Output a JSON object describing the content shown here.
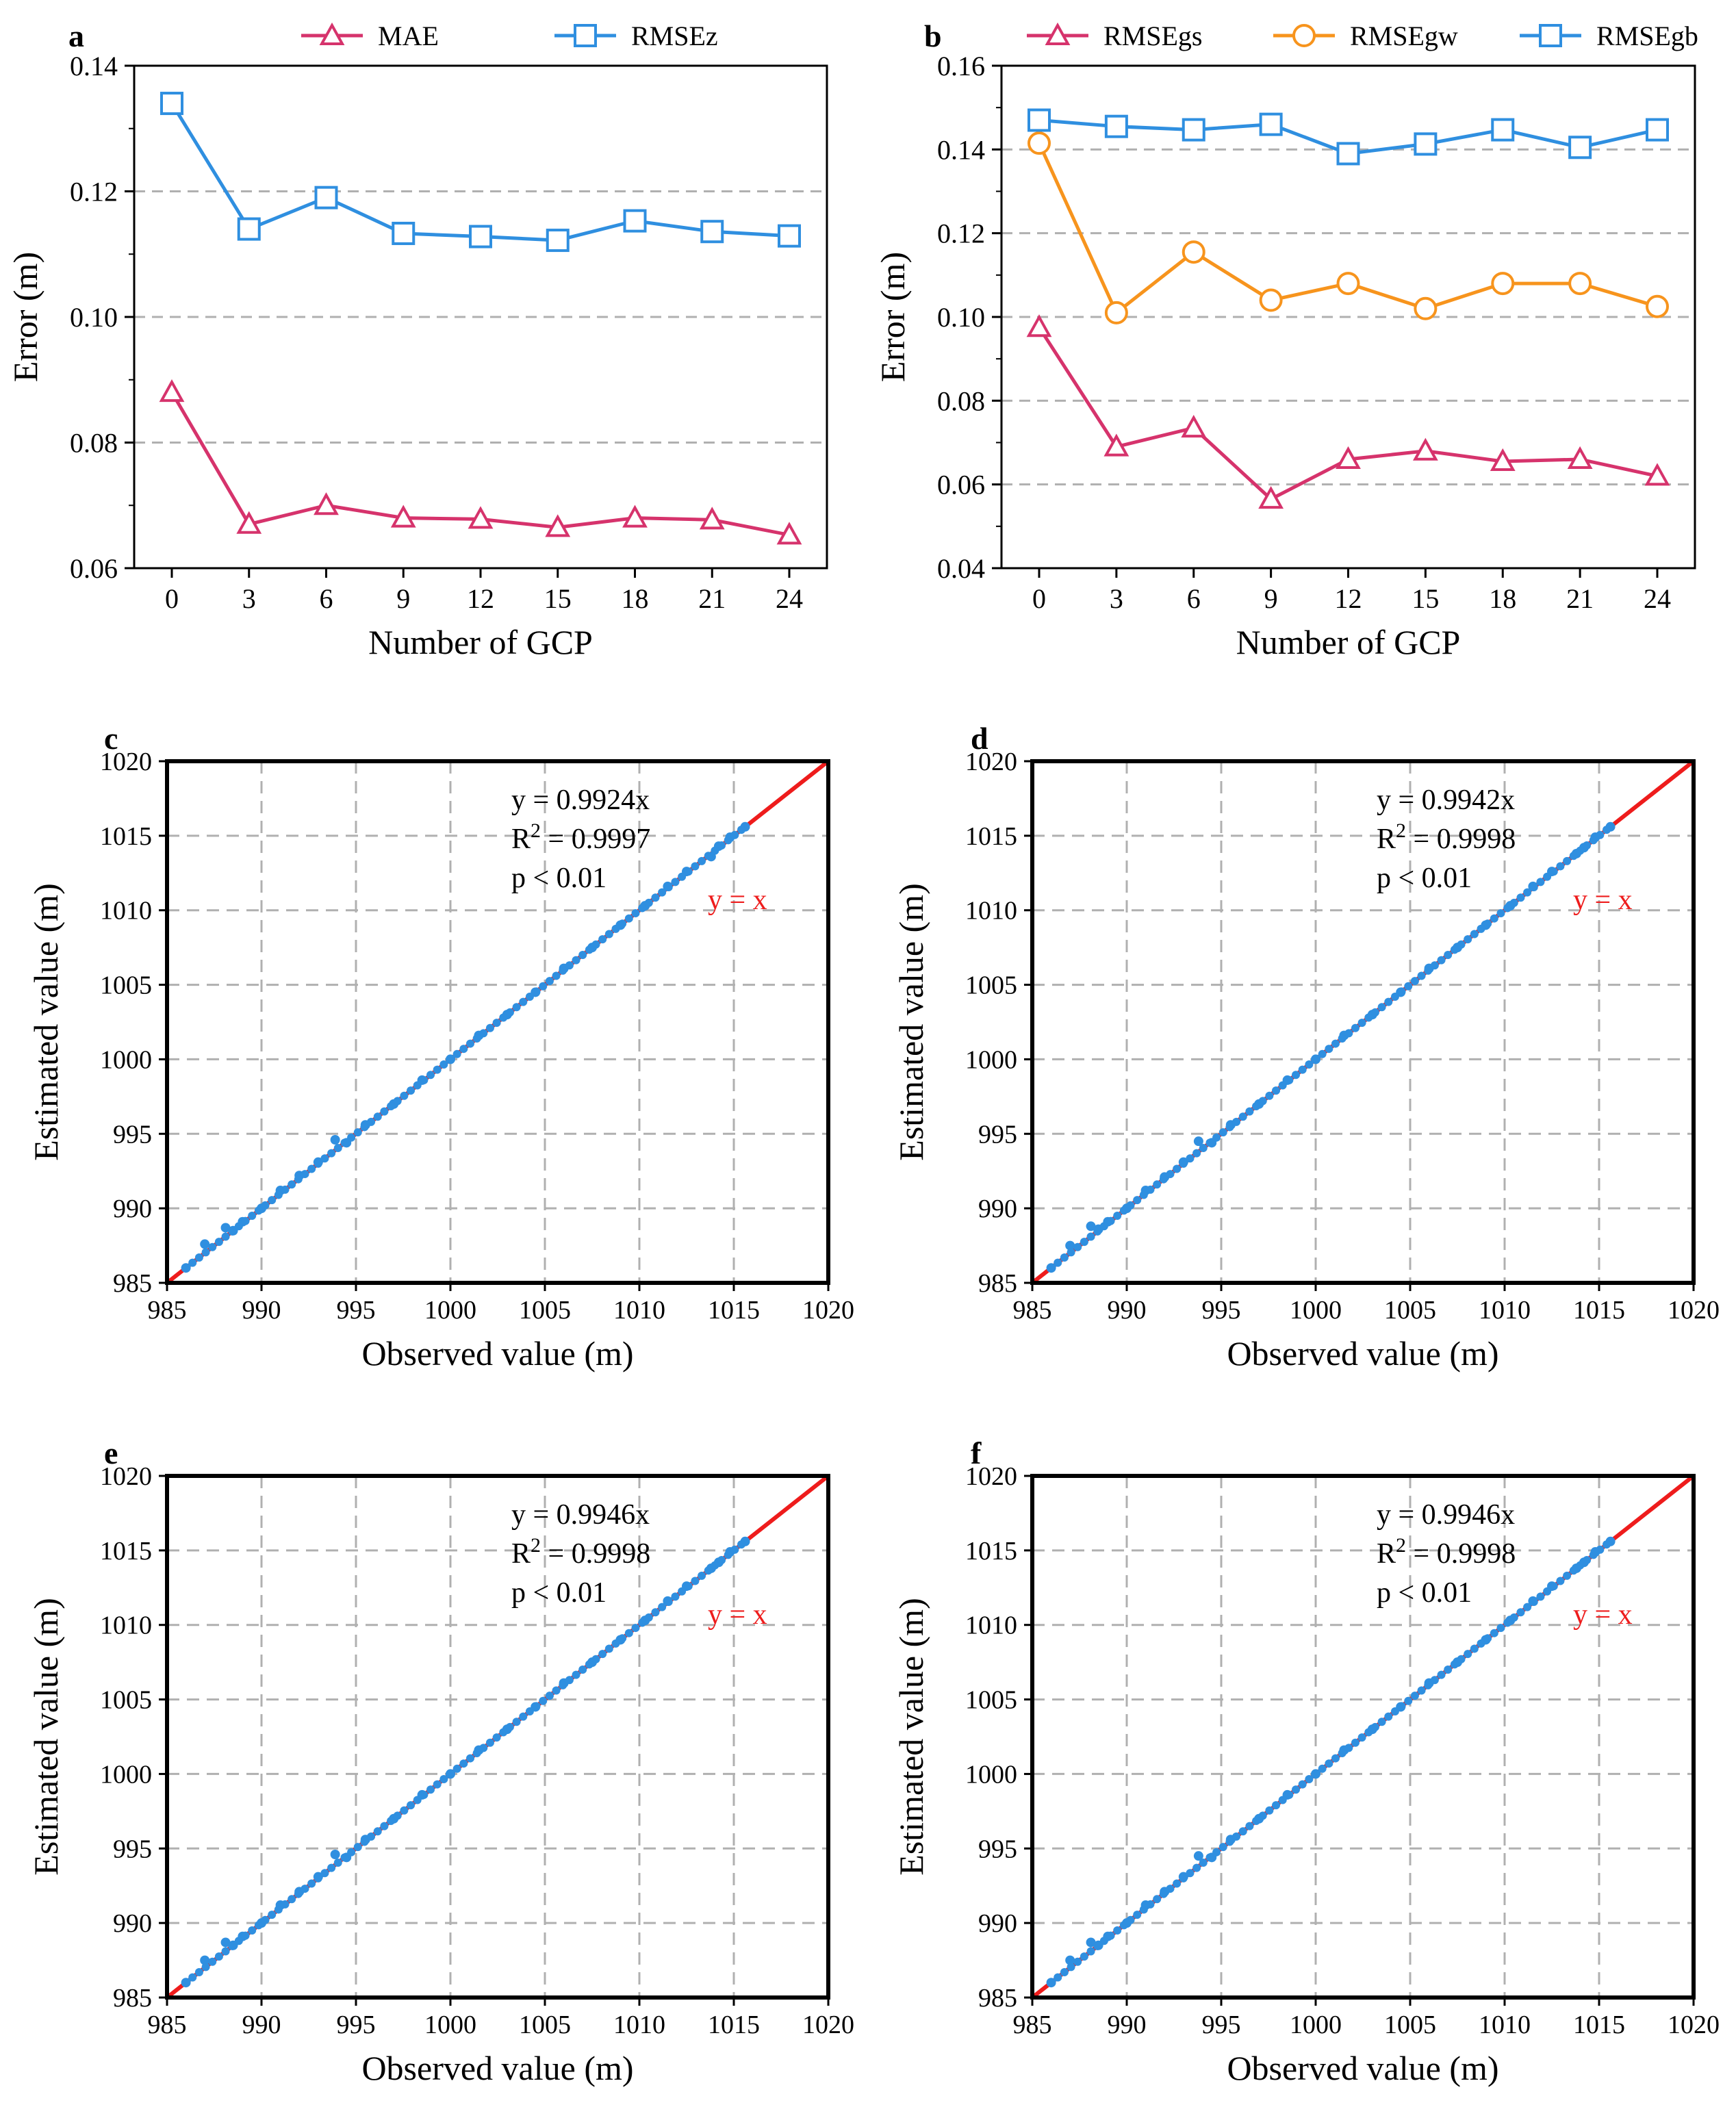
{
  "colors": {
    "mae": "#d6336c",
    "rmsez": "#2f8fe0",
    "rmsegs": "#d6336c",
    "rmsegw": "#f7941d",
    "rmsegb": "#2f8fe0",
    "points": "#2f8fe0",
    "identity": "#ee1c1c",
    "grid": "#b0b0b0"
  },
  "chart_data": [
    {
      "panel": "a",
      "type": "line",
      "xlabel": "Number of GCP",
      "ylabel": "Error (m)",
      "x": [
        0,
        3,
        6,
        9,
        12,
        15,
        18,
        21,
        24
      ],
      "xticks": [
        "0",
        "3",
        "6",
        "9",
        "12",
        "15",
        "18",
        "21",
        "24"
      ],
      "ylim": [
        0.06,
        0.14
      ],
      "yticks": [
        "0.06",
        "0.08",
        "0.10",
        "0.12",
        "0.14"
      ],
      "grid": "horizontal dashed",
      "legend": "top-center",
      "series": [
        {
          "name": "MAE",
          "marker": "triangle",
          "values": [
            0.088,
            0.067,
            0.07,
            0.068,
            0.0678,
            0.0665,
            0.068,
            0.0677,
            0.0653
          ]
        },
        {
          "name": "RMSEz",
          "marker": "square",
          "values": [
            0.134,
            0.114,
            0.119,
            0.1133,
            0.1128,
            0.1122,
            0.1153,
            0.1136,
            0.1129
          ]
        }
      ]
    },
    {
      "panel": "b",
      "type": "line",
      "xlabel": "Number of GCP",
      "ylabel": "Error (m)",
      "x": [
        0,
        3,
        6,
        9,
        12,
        15,
        18,
        21,
        24
      ],
      "xticks": [
        "0",
        "3",
        "6",
        "9",
        "12",
        "15",
        "18",
        "21",
        "24"
      ],
      "ylim": [
        0.04,
        0.16
      ],
      "yticks": [
        "0.04",
        "0.06",
        "0.08",
        "0.10",
        "0.12",
        "0.14",
        "0.16"
      ],
      "grid": "horizontal dashed",
      "legend": "top-center",
      "series": [
        {
          "name": "RMSEgs",
          "marker": "triangle",
          "values": [
            0.0975,
            0.069,
            0.0735,
            0.0565,
            0.066,
            0.068,
            0.0655,
            0.066,
            0.062
          ]
        },
        {
          "name": "RMSEgw",
          "marker": "circle",
          "values": [
            0.1415,
            0.101,
            0.1155,
            0.104,
            0.108,
            0.102,
            0.108,
            0.108,
            0.1025
          ]
        },
        {
          "name": "RMSEgb",
          "marker": "square",
          "values": [
            0.147,
            0.1455,
            0.1447,
            0.146,
            0.139,
            0.1413,
            0.1447,
            0.1405,
            0.1447
          ]
        }
      ]
    },
    {
      "panel": "c",
      "type": "scatter",
      "xlabel": "Observed value (m)",
      "ylabel": "Estimated value (m)",
      "xlim": [
        985,
        1020
      ],
      "ylim": [
        985,
        1020
      ],
      "ticks": [
        "985",
        "990",
        "995",
        "1000",
        "1005",
        "1010",
        "1015",
        "1020"
      ],
      "grid": "dashed both",
      "annotation": {
        "eq": "y = 0.9924x",
        "r2_prefix": "R",
        "r2_sup": "2",
        "r2_value": " = 0.9997",
        "p": "p < 0.01"
      },
      "identity_label": "y = x",
      "points": [
        [
          986,
          986
        ],
        [
          987,
          987.6
        ],
        [
          988.1,
          988.7
        ],
        [
          988.5,
          988.5
        ],
        [
          989,
          989.1
        ],
        [
          990,
          990
        ],
        [
          991,
          991.2
        ],
        [
          992,
          992.2
        ],
        [
          993,
          993.1
        ],
        [
          993.9,
          994.6
        ],
        [
          994.5,
          994.4
        ],
        [
          995.5,
          995.6
        ],
        [
          997,
          997
        ],
        [
          998.5,
          998.6
        ],
        [
          1000,
          1000
        ],
        [
          1001.5,
          1001.6
        ],
        [
          1003,
          1003
        ],
        [
          1004.5,
          1004.5
        ],
        [
          1006,
          1006.1
        ],
        [
          1007.5,
          1007.5
        ],
        [
          1009,
          1009
        ],
        [
          1010.3,
          1010.3
        ],
        [
          1011.5,
          1011.6
        ],
        [
          1012.5,
          1012.6
        ],
        [
          1013.8,
          1013.6
        ],
        [
          1014.2,
          1014.3
        ],
        [
          1014.8,
          1014.9
        ],
        [
          1015.6,
          1015.6
        ]
      ]
    },
    {
      "panel": "d",
      "type": "scatter",
      "xlabel": "Observed value (m)",
      "ylabel": "Estimated value (m)",
      "xlim": [
        985,
        1020
      ],
      "ylim": [
        985,
        1020
      ],
      "ticks": [
        "985",
        "990",
        "995",
        "1000",
        "1005",
        "1010",
        "1015",
        "1020"
      ],
      "grid": "dashed both",
      "annotation": {
        "eq": "y = 0.9942x",
        "r2_prefix": "R",
        "r2_sup": "2",
        "r2_value": " = 0.9998",
        "p": "p < 0.01"
      },
      "identity_label": "y = x",
      "points": [
        [
          986,
          986
        ],
        [
          987,
          987.5
        ],
        [
          988.1,
          988.8
        ],
        [
          988.5,
          988.6
        ],
        [
          989,
          989.1
        ],
        [
          990,
          990
        ],
        [
          991,
          991.2
        ],
        [
          992,
          992.1
        ],
        [
          993,
          993.1
        ],
        [
          993.8,
          994.5
        ],
        [
          994.5,
          994.4
        ],
        [
          995.5,
          995.6
        ],
        [
          997,
          997
        ],
        [
          998.5,
          998.6
        ],
        [
          1000,
          1000
        ],
        [
          1001.5,
          1001.6
        ],
        [
          1003,
          1003
        ],
        [
          1004.5,
          1004.5
        ],
        [
          1006,
          1006.1
        ],
        [
          1007.5,
          1007.5
        ],
        [
          1009,
          1009
        ],
        [
          1010.3,
          1010.3
        ],
        [
          1011.5,
          1011.6
        ],
        [
          1012.5,
          1012.6
        ],
        [
          1013.8,
          1013.8
        ],
        [
          1014.2,
          1014.2
        ],
        [
          1014.8,
          1014.9
        ],
        [
          1015.6,
          1015.6
        ]
      ]
    },
    {
      "panel": "e",
      "type": "scatter",
      "xlabel": "Observed value (m)",
      "ylabel": "Estimated value (m)",
      "xlim": [
        985,
        1020
      ],
      "ylim": [
        985,
        1020
      ],
      "ticks": [
        "985",
        "990",
        "995",
        "1000",
        "1005",
        "1010",
        "1015",
        "1020"
      ],
      "grid": "dashed both",
      "annotation": {
        "eq": "y = 0.9946x",
        "r2_prefix": "R",
        "r2_sup": "2",
        "r2_value": " = 0.9998",
        "p": "p < 0.01"
      },
      "identity_label": "y = x",
      "points": [
        [
          986,
          986
        ],
        [
          987,
          987.5
        ],
        [
          988.1,
          988.7
        ],
        [
          988.5,
          988.5
        ],
        [
          989,
          989.1
        ],
        [
          990,
          990
        ],
        [
          991,
          991.2
        ],
        [
          992,
          992.1
        ],
        [
          993,
          993.1
        ],
        [
          993.9,
          994.6
        ],
        [
          994.5,
          994.4
        ],
        [
          995.5,
          995.6
        ],
        [
          997,
          997
        ],
        [
          998.5,
          998.6
        ],
        [
          1000,
          1000
        ],
        [
          1001.5,
          1001.6
        ],
        [
          1003,
          1003
        ],
        [
          1004.5,
          1004.5
        ],
        [
          1006,
          1006.1
        ],
        [
          1007.5,
          1007.5
        ],
        [
          1009,
          1009
        ],
        [
          1010.3,
          1010.3
        ],
        [
          1011.5,
          1011.6
        ],
        [
          1012.5,
          1012.6
        ],
        [
          1013.8,
          1013.8
        ],
        [
          1014.2,
          1014.2
        ],
        [
          1014.8,
          1014.9
        ],
        [
          1015.6,
          1015.6
        ]
      ]
    },
    {
      "panel": "f",
      "type": "scatter",
      "xlabel": "Observed value (m)",
      "ylabel": "Estimated value (m)",
      "xlim": [
        985,
        1020
      ],
      "ylim": [
        985,
        1020
      ],
      "ticks": [
        "985",
        "990",
        "995",
        "1000",
        "1005",
        "1010",
        "1015",
        "1020"
      ],
      "grid": "dashed both",
      "annotation": {
        "eq": "y = 0.9946x",
        "r2_prefix": "R",
        "r2_sup": "2",
        "r2_value": " = 0.9998",
        "p": "p < 0.01"
      },
      "identity_label": "y = x",
      "points": [
        [
          986,
          986
        ],
        [
          987,
          987.5
        ],
        [
          988.1,
          988.7
        ],
        [
          988.5,
          988.5
        ],
        [
          989,
          989.1
        ],
        [
          990,
          990
        ],
        [
          991,
          991.2
        ],
        [
          992,
          992.1
        ],
        [
          993,
          993.1
        ],
        [
          993.8,
          994.5
        ],
        [
          994.5,
          994.4
        ],
        [
          995.5,
          995.6
        ],
        [
          997,
          997
        ],
        [
          998.5,
          998.6
        ],
        [
          1000,
          1000
        ],
        [
          1001.5,
          1001.6
        ],
        [
          1003,
          1003
        ],
        [
          1004.5,
          1004.5
        ],
        [
          1006,
          1006.1
        ],
        [
          1007.5,
          1007.5
        ],
        [
          1009,
          1009
        ],
        [
          1010.3,
          1010.3
        ],
        [
          1011.5,
          1011.6
        ],
        [
          1012.5,
          1012.6
        ],
        [
          1013.8,
          1013.8
        ],
        [
          1014.2,
          1014.2
        ],
        [
          1014.8,
          1014.9
        ],
        [
          1015.6,
          1015.6
        ]
      ]
    }
  ]
}
